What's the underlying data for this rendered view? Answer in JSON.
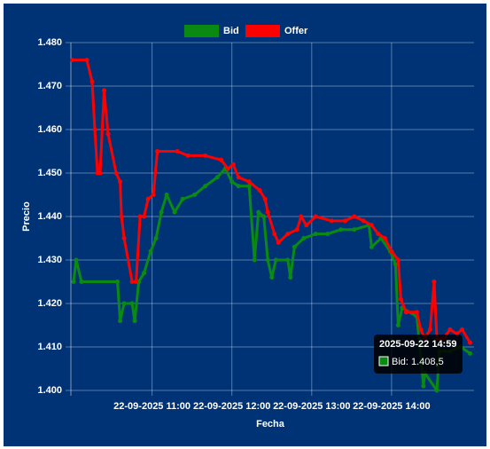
{
  "chart_data": {
    "type": "line",
    "x_label": "Fecha",
    "y_label": "Precio",
    "legend": "top",
    "grid": true,
    "ylim": [
      1.4,
      1.48
    ],
    "yticks": [
      {
        "value": 1.4,
        "label": "1.400"
      },
      {
        "value": 1.41,
        "label": "1.410"
      },
      {
        "value": 1.42,
        "label": "1.420"
      },
      {
        "value": 1.43,
        "label": "1.430"
      },
      {
        "value": 1.44,
        "label": "1.440"
      },
      {
        "value": 1.45,
        "label": "1.450"
      },
      {
        "value": 1.46,
        "label": "1.460"
      },
      {
        "value": 1.47,
        "label": "1.470"
      },
      {
        "value": 1.48,
        "label": "1.480"
      }
    ],
    "xlim": [
      "2025-09-22 09:59",
      "2025-09-22 15:02"
    ],
    "xticks": [
      {
        "value": "2025-09-22 11:00",
        "label": "22-09-2025 11:00"
      },
      {
        "value": "2025-09-22 12:00",
        "label": "22-09-2025 12:00"
      },
      {
        "value": "2025-09-22 13:00",
        "label": "22-09-2025 13:00"
      },
      {
        "value": "2025-09-22 14:00",
        "label": "22-09-2025 14:00"
      }
    ],
    "series": [
      {
        "name": "Bid",
        "color": "#0a8a12",
        "x": [
          "2025-09-22 10:01",
          "2025-09-22 10:03",
          "2025-09-22 10:07",
          "2025-09-22 10:34",
          "2025-09-22 10:36",
          "2025-09-22 10:39",
          "2025-09-22 10:45",
          "2025-09-22 10:47",
          "2025-09-22 10:50",
          "2025-09-22 10:54",
          "2025-09-22 10:59",
          "2025-09-22 11:03",
          "2025-09-22 11:07",
          "2025-09-22 11:11",
          "2025-09-22 11:17",
          "2025-09-22 11:23",
          "2025-09-22 11:32",
          "2025-09-22 11:40",
          "2025-09-22 11:49",
          "2025-09-22 11:55",
          "2025-09-22 12:00",
          "2025-09-22 12:05",
          "2025-09-22 12:13",
          "2025-09-22 12:17",
          "2025-09-22 12:20",
          "2025-09-22 12:24",
          "2025-09-22 12:27",
          "2025-09-22 12:30",
          "2025-09-22 12:33",
          "2025-09-22 12:42",
          "2025-09-22 12:44",
          "2025-09-22 12:47",
          "2025-09-22 12:54",
          "2025-09-22 13:03",
          "2025-09-22 13:12",
          "2025-09-22 13:22",
          "2025-09-22 13:32",
          "2025-09-22 13:43",
          "2025-09-22 13:45",
          "2025-09-22 13:52",
          "2025-09-22 13:59",
          "2025-09-22 14:03",
          "2025-09-22 14:05",
          "2025-09-22 14:08",
          "2025-09-22 14:19",
          "2025-09-22 14:24",
          "2025-09-22 14:25",
          "2025-09-22 14:34",
          "2025-09-22 14:36",
          "2025-09-22 14:44",
          "2025-09-22 14:52",
          "2025-09-22 14:59"
        ],
        "values": [
          1.425,
          1.43,
          1.425,
          1.425,
          1.416,
          1.42,
          1.42,
          1.416,
          1.425,
          1.427,
          1.432,
          1.435,
          1.441,
          1.445,
          1.441,
          1.444,
          1.445,
          1.447,
          1.449,
          1.451,
          1.448,
          1.447,
          1.447,
          1.43,
          1.441,
          1.44,
          1.43,
          1.426,
          1.43,
          1.43,
          1.426,
          1.433,
          1.435,
          1.436,
          1.436,
          1.437,
          1.437,
          1.438,
          1.433,
          1.435,
          1.432,
          1.429,
          1.415,
          1.419,
          1.417,
          1.401,
          1.404,
          1.4,
          1.409,
          1.409,
          1.41,
          1.4085
        ]
      },
      {
        "name": "Offer",
        "color": "#ff0000",
        "x": [
          "2025-09-22 10:00",
          "2025-09-22 10:11",
          "2025-09-22 10:15",
          "2025-09-22 10:17",
          "2025-09-22 10:19",
          "2025-09-22 10:21",
          "2025-09-22 10:24",
          "2025-09-22 10:27",
          "2025-09-22 10:33",
          "2025-09-22 10:36",
          "2025-09-22 10:37",
          "2025-09-22 10:39",
          "2025-09-22 10:45",
          "2025-09-22 10:48",
          "2025-09-22 10:51",
          "2025-09-22 10:54",
          "2025-09-22 10:57",
          "2025-09-22 11:01",
          "2025-09-22 11:04",
          "2025-09-22 11:19",
          "2025-09-22 11:27",
          "2025-09-22 11:40",
          "2025-09-22 11:52",
          "2025-09-22 11:57",
          "2025-09-22 12:01",
          "2025-09-22 12:05",
          "2025-09-22 12:13",
          "2025-09-22 12:21",
          "2025-09-22 12:25",
          "2025-09-22 12:27",
          "2025-09-22 12:32",
          "2025-09-22 12:35",
          "2025-09-22 12:42",
          "2025-09-22 12:49",
          "2025-09-22 12:52",
          "2025-09-22 12:56",
          "2025-09-22 13:03",
          "2025-09-22 13:15",
          "2025-09-22 13:25",
          "2025-09-22 13:32",
          "2025-09-22 13:39",
          "2025-09-22 13:45",
          "2025-09-22 13:50",
          "2025-09-22 13:55",
          "2025-09-22 14:00",
          "2025-09-22 14:05",
          "2025-09-22 14:07",
          "2025-09-22 14:11",
          "2025-09-22 14:19",
          "2025-09-22 14:22",
          "2025-09-22 14:25",
          "2025-09-22 14:29",
          "2025-09-22 14:32",
          "2025-09-22 14:34",
          "2025-09-22 14:39",
          "2025-09-22 14:44",
          "2025-09-22 14:49",
          "2025-09-22 14:53",
          "2025-09-22 14:59"
        ],
        "values": [
          1.476,
          1.476,
          1.471,
          1.46,
          1.45,
          1.45,
          1.469,
          1.459,
          1.45,
          1.448,
          1.44,
          1.435,
          1.425,
          1.425,
          1.44,
          1.44,
          1.444,
          1.445,
          1.455,
          1.455,
          1.454,
          1.454,
          1.453,
          1.451,
          1.452,
          1.449,
          1.448,
          1.446,
          1.444,
          1.441,
          1.436,
          1.434,
          1.436,
          1.437,
          1.44,
          1.438,
          1.44,
          1.439,
          1.439,
          1.44,
          1.439,
          1.438,
          1.436,
          1.435,
          1.432,
          1.43,
          1.421,
          1.418,
          1.418,
          1.414,
          1.412,
          1.414,
          1.425,
          1.412,
          1.412,
          1.414,
          1.413,
          1.414,
          1.411
        ]
      }
    ],
    "tooltip": {
      "title": "2025-09-22 14:59",
      "label": "Bid: 1.408,5"
    }
  }
}
